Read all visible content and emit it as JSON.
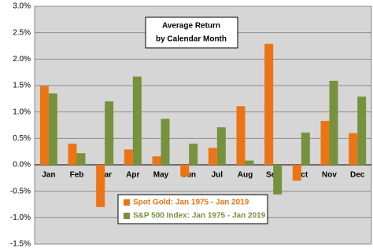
{
  "chart_data": {
    "type": "bar",
    "title": "Average Return",
    "subtitle": "by Calendar Month",
    "categories": [
      "Jan",
      "Feb",
      "Mar",
      "Apr",
      "May",
      "Jun",
      "Jul",
      "Aug",
      "Sep",
      "Oct",
      "Nov",
      "Dec"
    ],
    "series": [
      {
        "name": "Spot Gold: Jan 1975 - Jan 2019",
        "color": "#ec7414",
        "values": [
          1.49,
          0.4,
          -0.8,
          0.29,
          0.16,
          -0.22,
          0.32,
          1.11,
          2.29,
          -0.3,
          0.83,
          0.6
        ]
      },
      {
        "name": "S&P 500 Index: Jan 1975 - Jan 2019",
        "color": "#76923c",
        "values": [
          1.35,
          0.22,
          1.2,
          1.67,
          0.87,
          0.4,
          0.71,
          0.08,
          -0.56,
          0.61,
          1.59,
          1.29
        ]
      }
    ],
    "ylim": [
      -1.5,
      3.0
    ],
    "yticks": [
      {
        "value": -1.5,
        "label": "-1.5%"
      },
      {
        "value": -1.0,
        "label": "-1.0%"
      },
      {
        "value": -0.5,
        "label": "-0.5%"
      },
      {
        "value": 0.0,
        "label": "0.0%"
      },
      {
        "value": 0.5,
        "label": "0.5%"
      },
      {
        "value": 1.0,
        "label": "1.0%"
      },
      {
        "value": 1.5,
        "label": "1.5%"
      },
      {
        "value": 2.0,
        "label": "2.0%"
      },
      {
        "value": 2.5,
        "label": "2.5%"
      },
      {
        "value": 3.0,
        "label": "3.0%"
      }
    ],
    "grid": true
  }
}
